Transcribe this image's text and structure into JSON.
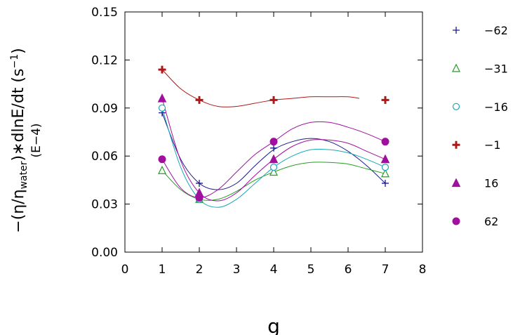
{
  "chart_data": {
    "type": "scatter",
    "xlabel": "g",
    "ylabel": {
      "main": "−(η/η",
      "sub": "water",
      "rest": ")∗dlnE/dt  (s",
      "sup": "−1",
      "close": ")",
      "multiplier": "(E−4)"
    },
    "xlim": [
      0,
      8
    ],
    "ylim": [
      0,
      0.15
    ],
    "x_ticks": [
      "0",
      "1",
      "2",
      "3",
      "4",
      "5",
      "6",
      "7",
      "8"
    ],
    "y_ticks": [
      "0.00",
      "0.03",
      "0.06",
      "0.09",
      "0.12",
      "0.15"
    ],
    "x_tick_values": [
      0,
      1,
      2,
      3,
      4,
      5,
      6,
      7,
      8
    ],
    "y_tick_values": [
      0,
      0.03,
      0.06,
      0.09,
      0.12,
      0.15
    ],
    "legend_placement": "right",
    "grid": false,
    "series": [
      {
        "name": "−62",
        "marker": "plus-thin",
        "color": "#1a1a8c",
        "points": [
          [
            1,
            0.087
          ],
          [
            2,
            0.043
          ],
          [
            4,
            0.065
          ],
          [
            7,
            0.043
          ]
        ],
        "curve": [
          [
            1,
            0.087
          ],
          [
            1.5,
            0.058
          ],
          [
            2,
            0.043
          ],
          [
            2.5,
            0.039
          ],
          [
            3,
            0.043
          ],
          [
            3.5,
            0.054
          ],
          [
            4,
            0.064
          ],
          [
            4.5,
            0.069
          ],
          [
            5,
            0.071
          ],
          [
            5.5,
            0.069
          ],
          [
            6,
            0.063
          ],
          [
            6.5,
            0.054
          ],
          [
            7,
            0.043
          ]
        ]
      },
      {
        "name": "−31",
        "marker": "triangle-open",
        "color": "#22a022",
        "points": [
          [
            1,
            0.051
          ],
          [
            2,
            0.033
          ],
          [
            4,
            0.05
          ],
          [
            7,
            0.049
          ]
        ],
        "curve": [
          [
            1,
            0.051
          ],
          [
            1.5,
            0.039
          ],
          [
            2,
            0.033
          ],
          [
            2.5,
            0.033
          ],
          [
            3,
            0.038
          ],
          [
            3.5,
            0.045
          ],
          [
            4,
            0.05
          ],
          [
            4.5,
            0.054
          ],
          [
            5,
            0.056
          ],
          [
            5.5,
            0.056
          ],
          [
            6,
            0.055
          ],
          [
            6.5,
            0.052
          ],
          [
            7,
            0.049
          ]
        ]
      },
      {
        "name": "−16",
        "marker": "circle-open",
        "color": "#1aa6b8",
        "points": [
          [
            1,
            0.09
          ],
          [
            2,
            0.033
          ],
          [
            4,
            0.053
          ],
          [
            7,
            0.053
          ]
        ],
        "curve": [
          [
            1,
            0.09
          ],
          [
            1.5,
            0.053
          ],
          [
            2,
            0.033
          ],
          [
            2.5,
            0.028
          ],
          [
            3,
            0.033
          ],
          [
            3.5,
            0.043
          ],
          [
            4,
            0.053
          ],
          [
            4.5,
            0.06
          ],
          [
            5,
            0.064
          ],
          [
            5.5,
            0.064
          ],
          [
            6,
            0.062
          ],
          [
            6.5,
            0.058
          ],
          [
            7,
            0.053
          ]
        ]
      },
      {
        "name": "−1",
        "marker": "plus-bold",
        "color": "#b01818",
        "points": [
          [
            1,
            0.114
          ],
          [
            2,
            0.095
          ],
          [
            4,
            0.095
          ],
          [
            7,
            0.095
          ]
        ],
        "curve": [
          [
            1,
            0.114
          ],
          [
            1.5,
            0.102
          ],
          [
            2,
            0.095
          ],
          [
            2.5,
            0.091
          ],
          [
            3,
            0.091
          ],
          [
            3.5,
            0.093
          ],
          [
            4,
            0.095
          ],
          [
            4.5,
            0.096
          ],
          [
            5,
            0.097
          ],
          [
            5.5,
            0.097
          ],
          [
            6,
            0.097
          ],
          [
            6.3,
            0.096
          ]
        ]
      },
      {
        "name": "16",
        "marker": "triangle-filled",
        "color": "#a0109e",
        "points": [
          [
            1,
            0.096
          ],
          [
            2,
            0.037
          ],
          [
            4,
            0.058
          ],
          [
            7,
            0.058
          ]
        ],
        "curve": [
          [
            1,
            0.096
          ],
          [
            1.5,
            0.057
          ],
          [
            2,
            0.037
          ],
          [
            2.5,
            0.032
          ],
          [
            3,
            0.037
          ],
          [
            3.5,
            0.048
          ],
          [
            4,
            0.058
          ],
          [
            4.5,
            0.066
          ],
          [
            5,
            0.07
          ],
          [
            5.5,
            0.07
          ],
          [
            6,
            0.068
          ],
          [
            6.5,
            0.063
          ],
          [
            7,
            0.058
          ]
        ]
      },
      {
        "name": "62",
        "marker": "circle-filled",
        "color": "#a0109e",
        "points": [
          [
            1,
            0.058
          ],
          [
            2,
            0.034
          ],
          [
            4,
            0.069
          ],
          [
            7,
            0.069
          ]
        ],
        "curve": [
          [
            1,
            0.058
          ],
          [
            1.5,
            0.04
          ],
          [
            2,
            0.034
          ],
          [
            2.5,
            0.039
          ],
          [
            3,
            0.05
          ],
          [
            3.5,
            0.061
          ],
          [
            4,
            0.069
          ],
          [
            4.5,
            0.077
          ],
          [
            5,
            0.081
          ],
          [
            5.5,
            0.081
          ],
          [
            6,
            0.078
          ],
          [
            6.5,
            0.074
          ],
          [
            7,
            0.069
          ]
        ]
      }
    ]
  }
}
